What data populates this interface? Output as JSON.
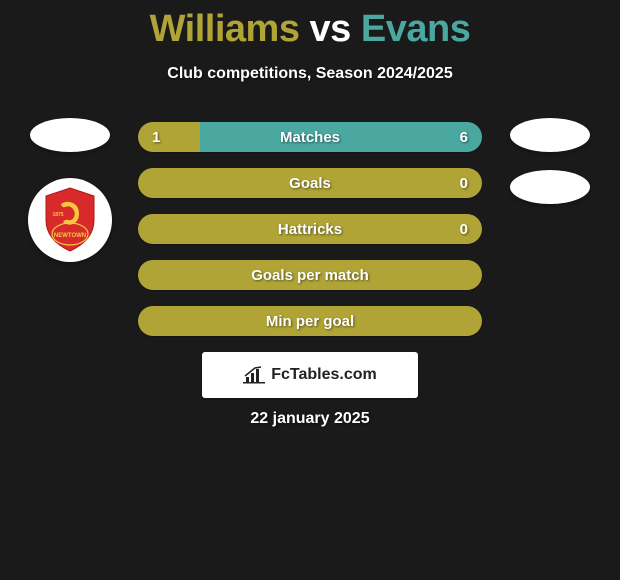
{
  "title": {
    "player1": "Williams",
    "vs": "vs",
    "player2": "Evans",
    "player1_color": "#b0a436",
    "vs_color": "#ffffff",
    "player2_color": "#4aa8a0"
  },
  "subtitle": "Club competitions, Season 2024/2025",
  "background_color": "#1a1a1a",
  "colors": {
    "player1_bar": "#b0a436",
    "player2_bar": "#4aa8a0",
    "neutral_bar": "#b0a436"
  },
  "club_badge": {
    "name": "Newtown AFC",
    "year": "1875",
    "primary_color": "#d82a2a",
    "secondary_color": "#f5c842"
  },
  "stats": [
    {
      "label": "Matches",
      "left_value": "1",
      "right_value": "6",
      "left_num": 1,
      "right_num": 6,
      "left_color": "#b0a436",
      "right_color": "#4aa8a0",
      "split_pct": 18
    },
    {
      "label": "Goals",
      "left_value": "",
      "right_value": "0",
      "left_num": 0,
      "right_num": 0,
      "left_color": "#b0a436",
      "right_color": "#b0a436",
      "split_pct": 0
    },
    {
      "label": "Hattricks",
      "left_value": "",
      "right_value": "0",
      "left_num": 0,
      "right_num": 0,
      "left_color": "#b0a436",
      "right_color": "#b0a436",
      "split_pct": 0
    },
    {
      "label": "Goals per match",
      "left_value": "",
      "right_value": "",
      "left_num": 0,
      "right_num": 0,
      "left_color": "#b0a436",
      "right_color": "#b0a436",
      "split_pct": 0
    },
    {
      "label": "Min per goal",
      "left_value": "",
      "right_value": "",
      "left_num": 0,
      "right_num": 0,
      "left_color": "#b0a436",
      "right_color": "#b0a436",
      "split_pct": 0
    }
  ],
  "attribution": {
    "text": "FcTables.com"
  },
  "footer_date": "22 january 2025"
}
